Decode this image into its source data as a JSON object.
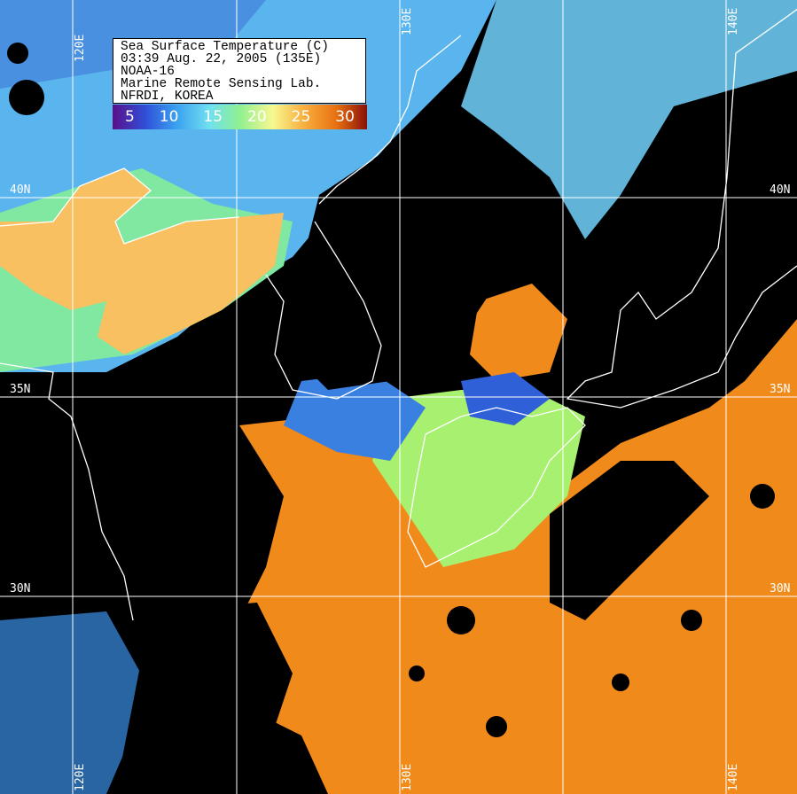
{
  "legend": {
    "title": "Sea Surface Temperature (C)",
    "datetime": "03:39 Aug. 22, 2005 (135E)",
    "satellite": "NOAA-16",
    "lab": "Marine Remote Sensing Lab.",
    "org": "NFRDI, KOREA",
    "colorbar_ticks": [
      "5",
      "10",
      "15",
      "20",
      "25",
      "30"
    ],
    "colorbar_colors": [
      "#5a0f8a",
      "#3050d8",
      "#3aa0f0",
      "#70e0f0",
      "#90f090",
      "#f8f890",
      "#f8b040",
      "#e87010",
      "#8a1008"
    ]
  },
  "grid": {
    "lon_labels": [
      "120E",
      "130E",
      "140E"
    ],
    "lat_labels": [
      "40N",
      "35N",
      "30N"
    ]
  },
  "colors": {
    "cloud_mask": "#000000",
    "coastline": "#ffffff",
    "grid": "#ffffff",
    "warm_sst": "#f08a1a",
    "cool_sst": "#6cc8f0"
  }
}
